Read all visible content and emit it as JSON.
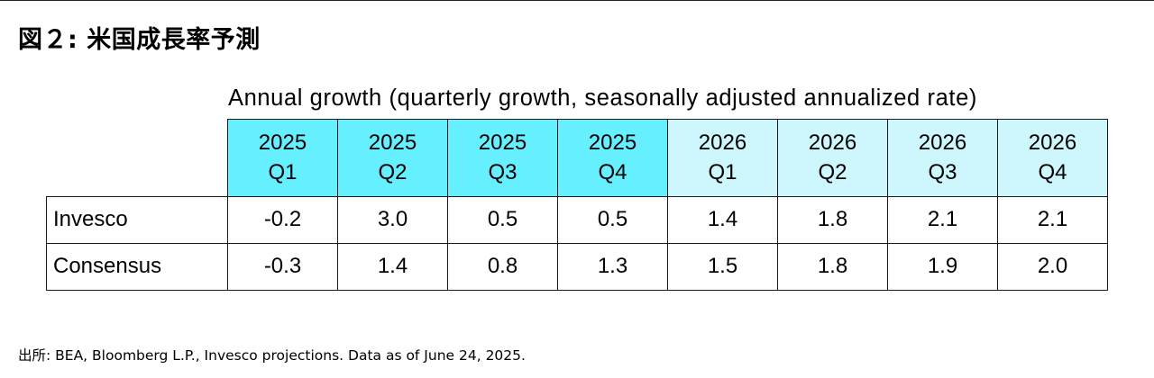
{
  "title": "図２: 米国成長率予測",
  "subtitle": "Annual growth (quarterly growth, seasonally adjusted annualized rate)",
  "colors": {
    "header_2025": "#66f0ff",
    "header_2026": "#cdf7fc",
    "border": "#1a1a1a"
  },
  "table": {
    "columns": [
      {
        "year": "2025",
        "quarter": "Q1"
      },
      {
        "year": "2025",
        "quarter": "Q2"
      },
      {
        "year": "2025",
        "quarter": "Q3"
      },
      {
        "year": "2025",
        "quarter": "Q4"
      },
      {
        "year": "2026",
        "quarter": "Q1"
      },
      {
        "year": "2026",
        "quarter": "Q2"
      },
      {
        "year": "2026",
        "quarter": "Q3"
      },
      {
        "year": "2026",
        "quarter": "Q4"
      }
    ],
    "rows": [
      {
        "label": "Invesco",
        "values": [
          "-0.2",
          "3.0",
          "0.5",
          "0.5",
          "1.4",
          "1.8",
          "2.1",
          "2.1"
        ]
      },
      {
        "label": "Consensus",
        "values": [
          "-0.3",
          "1.4",
          "0.8",
          "1.3",
          "1.5",
          "1.8",
          "1.9",
          "2.0"
        ]
      }
    ]
  },
  "source": "出所: BEA, Bloomberg L.P., Invesco projections. Data as of June 24, 2025."
}
